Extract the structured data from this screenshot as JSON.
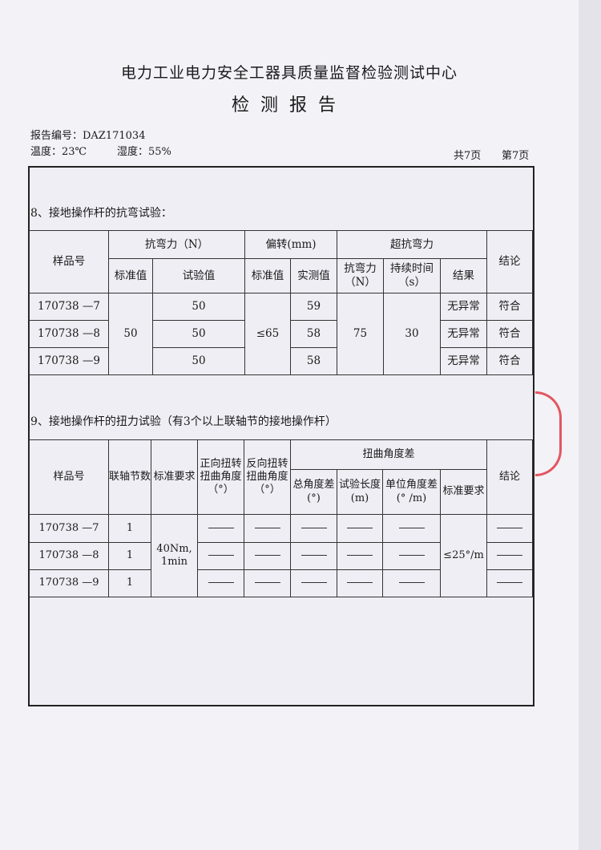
{
  "header": {
    "title": "电力工业电力安全工器具质量监督检验测试中心",
    "subtitle": "检测报告",
    "report_no": "报告编号：DAZ171034",
    "temperature": "温度：23℃",
    "humidity": "湿度：55%",
    "total_pages": "共7页",
    "current_page": "第7页"
  },
  "section8": {
    "title": "8、接地操作杆的抗弯试验：",
    "headers": {
      "sample": "样品号",
      "bending_force": "抗弯力（N）",
      "deflection": "偏转(mm)",
      "over_bending": "超抗弯力",
      "conclusion": "结论",
      "standard": "标准值",
      "test_value": "试验值",
      "def_standard": "标准值",
      "measured": "实测值",
      "force_n": "抗弯力（N）",
      "duration": "持续时间（s）",
      "result": "结果"
    },
    "shared": {
      "standard": "50",
      "def_standard": "≤65",
      "force": "75",
      "duration": "30"
    },
    "rows": [
      {
        "sample": "170738 —7",
        "test_value": "50",
        "measured": "59",
        "result": "无异常",
        "conclusion": "符合"
      },
      {
        "sample": "170738 —8",
        "test_value": "50",
        "measured": "58",
        "result": "无异常",
        "conclusion": "符合"
      },
      {
        "sample": "170738 —9",
        "test_value": "50",
        "measured": "58",
        "result": "无异常",
        "conclusion": "符合"
      }
    ]
  },
  "section9": {
    "title": "9、接地操作杆的扭力试验（有3个以上联轴节的接地操作杆）",
    "headers": {
      "sample": "样品号",
      "couplings": "联轴节数",
      "requirement": "标准要求",
      "forward": "正向扭转扭曲角度（°）",
      "reverse": "反向扭转扭曲角度（°）",
      "angle_diff": "扭曲角度差",
      "total": "总角度差(°)",
      "length": "试验长度(m)",
      "unit": "单位角度差(° /m)",
      "std": "标准要求",
      "conclusion": "结论"
    },
    "shared": {
      "requirement": "40Nm, 1min",
      "std": "≤25°/m"
    },
    "rows": [
      {
        "sample": "170738 —7",
        "couplings": "1"
      },
      {
        "sample": "170738 —8",
        "couplings": "1"
      },
      {
        "sample": "170738 —9",
        "couplings": "1"
      }
    ]
  }
}
